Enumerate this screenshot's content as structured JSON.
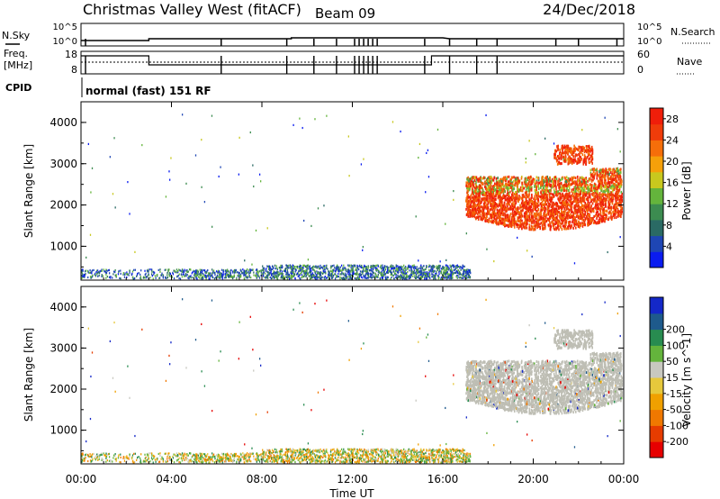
{
  "header": {
    "station": "Christmas Valley West (fitACF)",
    "beam": "Beam 09",
    "date": "24/Dec/2018"
  },
  "status_panels": {
    "nsky_label": "N.Sky",
    "nsky_ticks": [
      "10^5",
      "10^0"
    ],
    "nsearch_label": "N.Search",
    "freq_label_line1": "Freq.",
    "freq_label_line2": "[MHz]",
    "freq_ticks": [
      "18",
      "8"
    ],
    "nave_label": "Nave",
    "nave_ticks": [
      "60",
      "0"
    ],
    "cpid_label": "CPID",
    "cpid_text": "normal (fast) 151 RF"
  },
  "colors": {
    "power_scale": [
      "#0a1cf0",
      "#1e46b4",
      "#2a6a64",
      "#3c8c50",
      "#64b43c",
      "#c8c81e",
      "#f5a00a",
      "#f56e0a",
      "#f03c0a",
      "#f01e0a"
    ],
    "velocity_scale": [
      "#e60000",
      "#e63c00",
      "#f07800",
      "#f0a000",
      "#e6c83c",
      "#c8c8c0",
      "#64b43c",
      "#288c50",
      "#1e5a8c",
      "#1428c8"
    ],
    "ground_scatter": "#bebeb4"
  },
  "chart_data": [
    {
      "type": "heatmap",
      "title": "",
      "xlabel": "Time UT",
      "ylabel": "Slant Range [km]",
      "x_tick_labels": [
        "00:00",
        "04:00",
        "08:00",
        "12:00",
        "16:00",
        "20:00",
        "00:00"
      ],
      "y_tick_labels": [
        "1000",
        "2000",
        "3000",
        "4000"
      ],
      "xlim_hours": [
        0,
        24
      ],
      "ylim_km": [
        180,
        4500
      ],
      "colorbar": {
        "label": "Power [dB]",
        "ticks": [
          "4",
          "8",
          "12",
          "16",
          "20",
          "24",
          "28"
        ],
        "range": [
          0,
          30
        ]
      },
      "regions": [
        {
          "t_start": 0,
          "t_end": 17.2,
          "range_min": 180,
          "range_max": 450,
          "value": "low power (4-12 dB) near-range echoes"
        },
        {
          "t_start": 17.0,
          "t_end": 24.0,
          "range_min": 1350,
          "range_max": 2900,
          "value": "high power (20-30 dB) far-range echoes"
        },
        {
          "t_start": 21.0,
          "t_end": 22.6,
          "range_min": 2950,
          "range_max": 3400,
          "value": "high power patches"
        }
      ]
    },
    {
      "type": "heatmap",
      "title": "",
      "xlabel": "Time UT",
      "ylabel": "Slant Range [km]",
      "x_tick_labels": [
        "00:00",
        "04:00",
        "08:00",
        "12:00",
        "16:00",
        "20:00",
        "00:00"
      ],
      "y_tick_labels": [
        "1000",
        "2000",
        "3000",
        "4000"
      ],
      "xlim_hours": [
        0,
        24
      ],
      "ylim_km": [
        180,
        4500
      ],
      "colorbar": {
        "label": "Velocity [m s^-1]",
        "ticks": [
          "-200",
          "-100",
          "-50",
          "-15",
          "15",
          "50",
          "100",
          "200"
        ],
        "range": [
          -250,
          250
        ]
      },
      "regions": [
        {
          "t_start": 0,
          "t_end": 17.2,
          "range_min": 180,
          "range_max": 450,
          "value": "velocity -50 to 50 m/s (orange/green)"
        },
        {
          "t_start": 17.0,
          "t_end": 24.0,
          "range_min": 1400,
          "range_max": 3000,
          "value": "ground scatter (grey)"
        },
        {
          "t_start": 21.0,
          "t_end": 22.6,
          "range_min": 3000,
          "range_max": 3500,
          "value": "ground scatter (grey)"
        }
      ]
    }
  ]
}
